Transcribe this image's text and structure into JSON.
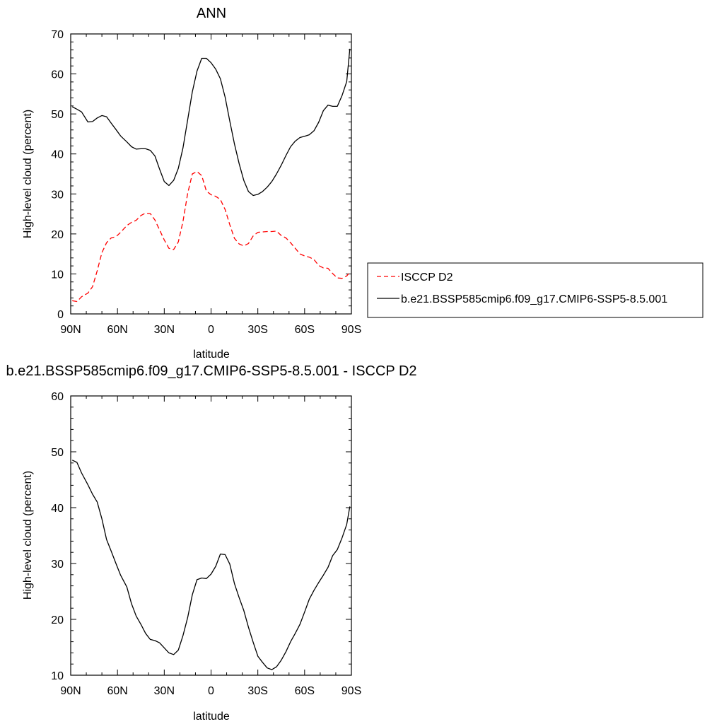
{
  "chart_data": [
    {
      "type": "line",
      "title": "ANN",
      "xlabel": "latitude",
      "ylabel": "High-level cloud (percent)",
      "xlim": [
        90,
        -90
      ],
      "ylim": [
        0,
        70
      ],
      "x_tick_values": [
        90,
        60,
        30,
        0,
        -30,
        -60,
        -90
      ],
      "x_tick_labels": [
        "90N",
        "60N",
        "30N",
        "0",
        "30S",
        "60S",
        "90S"
      ],
      "y_tick_values": [
        0,
        10,
        20,
        30,
        40,
        50,
        60,
        70
      ],
      "y_tick_labels": [
        "0",
        "10",
        "20",
        "30",
        "40",
        "50",
        "60",
        "70"
      ],
      "grid": false,
      "legend_position": "right",
      "series": [
        {
          "name": "ISCCP D2",
          "color": "#ff0000",
          "dash": "dashed",
          "x": [
            89,
            86,
            83,
            79,
            76,
            73,
            70,
            67,
            64,
            61,
            58,
            54,
            51,
            48,
            45,
            42,
            39,
            36,
            33,
            30,
            27,
            24,
            21,
            18,
            15,
            12,
            9,
            6,
            3,
            0,
            -3,
            -6,
            -9,
            -12,
            -15,
            -18,
            -21,
            -24,
            -27,
            -30,
            -33,
            -36,
            -39,
            -42,
            -45,
            -48,
            -51,
            -54,
            -57,
            -60,
            -63,
            -66,
            -69,
            -72,
            -75,
            -78,
            -81,
            -84,
            -87,
            -89
          ],
          "y": [
            3.3,
            3.1,
            4.3,
            5.2,
            6.8,
            10.8,
            15.3,
            17.8,
            19.0,
            19.3,
            20.4,
            22.1,
            22.9,
            23.4,
            24.6,
            25.2,
            25.1,
            23.5,
            21.0,
            18.5,
            16.4,
            16.1,
            18.0,
            23.1,
            30.1,
            35.0,
            35.6,
            34.6,
            30.7,
            29.8,
            29.4,
            28.6,
            26.1,
            22.3,
            18.9,
            17.5,
            17.0,
            17.6,
            19.5,
            20.4,
            20.5,
            20.6,
            20.6,
            20.7,
            19.6,
            19.0,
            17.8,
            16.4,
            15.0,
            14.5,
            14.2,
            13.6,
            12.1,
            11.5,
            11.4,
            10.1,
            9.0,
            8.9,
            9.5,
            10.4
          ]
        },
        {
          "name": "b.e21.BSSP585cmip6.f09_g17.CMIP6-SSP5-8.5.001",
          "color": "#000000",
          "dash": "solid",
          "x": [
            89,
            86,
            83,
            79,
            76,
            73,
            70,
            67,
            64,
            61,
            58,
            54,
            51,
            48,
            45,
            42,
            39,
            36,
            33,
            30,
            27,
            24,
            21,
            18,
            15,
            12,
            9,
            6,
            3,
            0,
            -3,
            -6,
            -9,
            -12,
            -15,
            -18,
            -21,
            -24,
            -27,
            -30,
            -33,
            -36,
            -39,
            -42,
            -45,
            -48,
            -51,
            -54,
            -57,
            -60,
            -63,
            -66,
            -69,
            -72,
            -75,
            -78,
            -81,
            -84,
            -87,
            -89
          ],
          "y": [
            51.8,
            51.2,
            50.5,
            48.0,
            48.1,
            49.0,
            49.6,
            49.3,
            47.7,
            46.1,
            44.5,
            43.0,
            41.8,
            41.2,
            41.3,
            41.3,
            40.9,
            39.5,
            36.2,
            33.1,
            32.1,
            33.4,
            36.4,
            41.5,
            48.5,
            55.5,
            60.7,
            63.9,
            63.9,
            62.8,
            61.2,
            58.8,
            54.2,
            48.2,
            42.5,
            37.6,
            33.4,
            30.6,
            29.6,
            29.9,
            30.6,
            31.7,
            33.1,
            35.0,
            37.2,
            39.6,
            41.8,
            43.2,
            44.1,
            44.4,
            44.8,
            45.8,
            47.9,
            50.8,
            52.2,
            51.9,
            51.9,
            54.6,
            58.1,
            66.3
          ]
        }
      ]
    },
    {
      "type": "line",
      "title": "b.e21.BSSP585cmip6.f09_g17.CMIP6-SSP5-8.5.001 - ISCCP D2",
      "xlabel": "latitude",
      "ylabel": "High-level cloud (percent)",
      "xlim": [
        90,
        -90
      ],
      "ylim": [
        10,
        60
      ],
      "x_tick_values": [
        90,
        60,
        30,
        0,
        -30,
        -60,
        -90
      ],
      "x_tick_labels": [
        "90N",
        "60N",
        "30N",
        "0",
        "30S",
        "60S",
        "90S"
      ],
      "y_tick_values": [
        10,
        20,
        30,
        40,
        50,
        60
      ],
      "y_tick_labels": [
        "10",
        "20",
        "30",
        "40",
        "50",
        "60"
      ],
      "grid": false,
      "series": [
        {
          "color": "#000000",
          "dash": "solid",
          "x": [
            89,
            86,
            83,
            79,
            76,
            73,
            70,
            67,
            64,
            61,
            58,
            54,
            51,
            48,
            45,
            42,
            39,
            36,
            33,
            30,
            27,
            24,
            21,
            18,
            15,
            12,
            9,
            6,
            3,
            0,
            -3,
            -6,
            -9,
            -12,
            -15,
            -18,
            -21,
            -24,
            -27,
            -30,
            -33,
            -36,
            -39,
            -42,
            -45,
            -48,
            -51,
            -54,
            -57,
            -60,
            -63,
            -66,
            -69,
            -72,
            -75,
            -78,
            -81,
            -84,
            -87,
            -89
          ],
          "y": [
            48.5,
            48.1,
            46.2,
            44.1,
            42.4,
            41.0,
            38.0,
            34.3,
            32.2,
            30.0,
            27.9,
            25.8,
            22.8,
            20.6,
            19.1,
            17.5,
            16.4,
            16.2,
            15.8,
            14.9,
            14.0,
            13.7,
            14.5,
            17.1,
            20.3,
            24.4,
            27.1,
            27.4,
            27.3,
            28.1,
            29.5,
            31.7,
            31.6,
            29.9,
            26.4,
            23.9,
            21.6,
            18.6,
            15.9,
            13.4,
            12.3,
            11.3,
            11.0,
            11.5,
            12.7,
            14.2,
            16.0,
            17.5,
            19.1,
            21.3,
            23.6,
            25.2,
            26.6,
            27.9,
            29.3,
            31.4,
            32.5,
            34.6,
            37.0,
            40.2
          ]
        }
      ]
    }
  ]
}
